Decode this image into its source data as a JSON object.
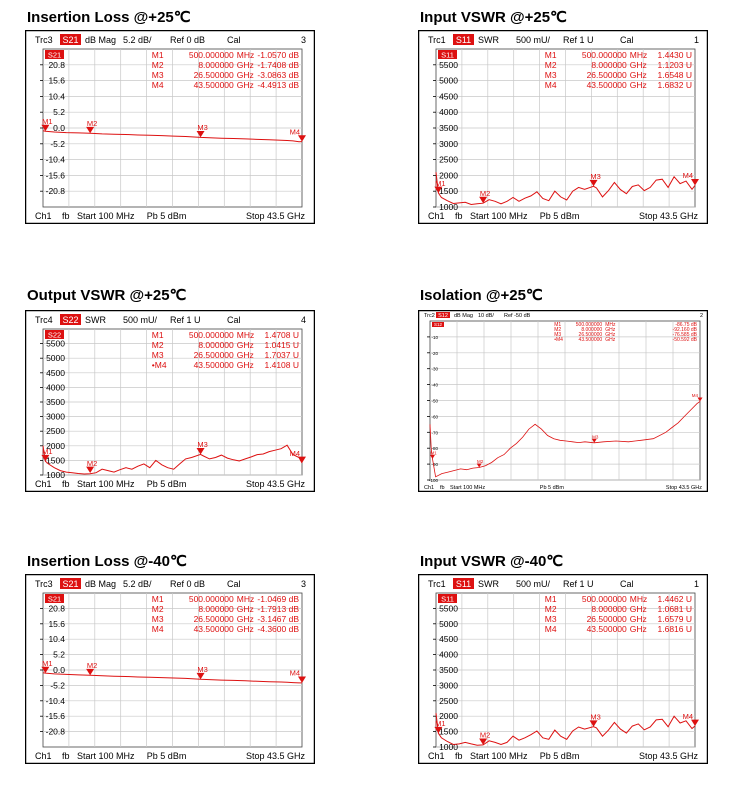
{
  "headings": [
    "Insertion Loss @+25℃",
    "Input VSWR @+25℃",
    "Output VSWR @+25℃",
    "Isolation @+25℃",
    "Insertion Loss @-40℃",
    "Input VSWR @-40℃"
  ],
  "colors": {
    "trace": "#dd1111",
    "frame": "#000000",
    "grid": "#c8c8c8",
    "background": "#ffffff"
  },
  "chart_data": [
    {
      "type": "line",
      "title": "Insertion Loss @+25℃",
      "header": {
        "trace": "Trc3",
        "param": "S21",
        "format": "dB Mag",
        "scale": "5.2 dB/",
        "ref": "Ref 0 dB",
        "cal": "Cal",
        "channel_number": "3"
      },
      "param_tag": "S21",
      "footer": {
        "channel": "Ch1",
        "mode": "fb",
        "start": "Start  100 MHz",
        "power": "Pb    5 dBm",
        "stop": "Stop  43.5 GHz"
      },
      "xlim": [
        0.1,
        43.5
      ],
      "ylim": [
        -26,
        26
      ],
      "ytick_values": [
        20.8,
        15.6,
        10.4,
        5.2,
        0.0,
        -5.2,
        -10.4,
        -15.6,
        -20.8
      ],
      "yticks": [
        "20.8",
        "15.6",
        "10.4",
        "5.2",
        "0.0",
        "-5.2",
        "-10.4",
        "-15.6",
        "-20.8"
      ],
      "markers": [
        {
          "id": "M1",
          "label": "M1",
          "freq": "500.000000",
          "unit": "MHz",
          "value": "-1.0570 dB",
          "x": 0.5,
          "y": -1.057
        },
        {
          "id": "M2",
          "label": "M2",
          "freq": "8.000000",
          "unit": "GHz",
          "value": "-1.7408 dB",
          "x": 8.0,
          "y": -1.741
        },
        {
          "id": "M3",
          "label": "M3",
          "freq": "26.500000",
          "unit": "GHz",
          "value": "-3.0863 dB",
          "x": 26.5,
          "y": -3.086
        },
        {
          "id": "M4",
          "label": "M4",
          "freq": "43.500000",
          "unit": "GHz",
          "value": "-4.4913 dB",
          "x": 43.5,
          "y": -4.491
        }
      ],
      "series": [
        {
          "x": [
            0.1,
            0.5,
            2,
            4,
            6,
            8,
            10,
            12,
            14,
            16,
            18,
            20,
            22,
            24,
            26.5,
            28,
            30,
            32,
            34,
            36,
            38,
            40,
            41,
            42,
            43,
            43.5
          ],
          "y": [
            -0.9,
            -1.06,
            -1.3,
            -1.5,
            -1.6,
            -1.74,
            -1.95,
            -2.05,
            -2.15,
            -2.3,
            -2.4,
            -2.5,
            -2.65,
            -2.8,
            -3.09,
            -3.2,
            -3.35,
            -3.45,
            -3.6,
            -3.75,
            -3.9,
            -4.0,
            -4.1,
            -4.25,
            -4.5,
            -4.49
          ]
        }
      ]
    },
    {
      "type": "line",
      "title": "Input VSWR @+25℃",
      "header": {
        "trace": "Trc1",
        "param": "S11",
        "format": "SWR",
        "scale": "500 mU/",
        "ref": "Ref 1 U",
        "cal": "Cal",
        "channel_number": "1"
      },
      "param_tag": "S11",
      "footer": {
        "channel": "Ch1",
        "mode": "fb",
        "start": "Start  100 MHz",
        "power": "Pb    5 dBm",
        "stop": "Stop  43.5 GHz"
      },
      "xlim": [
        0.1,
        43.5
      ],
      "ylim": [
        1000,
        6000
      ],
      "ytick_values": [
        5500,
        5000,
        4500,
        4000,
        3500,
        3000,
        2500,
        2000,
        1500,
        1000
      ],
      "yticks": [
        "5500",
        "5000",
        "4500",
        "4000",
        "3500",
        "3000",
        "2500",
        "2000",
        "1500",
        "1000"
      ],
      "markers": [
        {
          "id": "M1",
          "label": "M1",
          "freq": "500.000000",
          "unit": "MHz",
          "value": "1.4430 U",
          "x": 0.5,
          "y": 1443
        },
        {
          "id": "M2",
          "label": "M2",
          "freq": "8.000000",
          "unit": "GHz",
          "value": "1.1203 U",
          "x": 8.0,
          "y": 1120
        },
        {
          "id": "M3",
          "label": "M3",
          "freq": "26.500000",
          "unit": "GHz",
          "value": "1.6548 U",
          "x": 26.5,
          "y": 1655
        },
        {
          "id": "M4",
          "label": "M4",
          "freq": "43.500000",
          "unit": "GHz",
          "value": "1.6832 U",
          "x": 43.5,
          "y": 1683
        }
      ],
      "series": [
        {
          "x": [
            0.1,
            0.5,
            1,
            2,
            3,
            4,
            5,
            6,
            7,
            8,
            9,
            10,
            11,
            12,
            13,
            14,
            15,
            16,
            17,
            18,
            19,
            20,
            21,
            22,
            23,
            24,
            25,
            26.5,
            27,
            28,
            29,
            30,
            31,
            32,
            33,
            34,
            35,
            36,
            37,
            38,
            39,
            40,
            41,
            42,
            43,
            43.5
          ],
          "y": [
            2100,
            1443,
            1300,
            1200,
            1110,
            1130,
            1150,
            1080,
            1100,
            1120,
            1230,
            1180,
            1100,
            1180,
            1300,
            1180,
            1280,
            1350,
            1480,
            1270,
            1200,
            1500,
            1320,
            1220,
            1500,
            1620,
            1560,
            1655,
            1600,
            1320,
            1520,
            1780,
            1550,
            1420,
            1650,
            1700,
            1520,
            1620,
            1850,
            1880,
            1620,
            1960,
            1740,
            1820,
            1560,
            1683
          ]
        }
      ]
    },
    {
      "type": "line",
      "title": "Output VSWR @+25℃",
      "header": {
        "trace": "Trc4",
        "param": "S22",
        "format": "SWR",
        "scale": "500 mU/",
        "ref": "Ref 1 U",
        "cal": "Cal",
        "channel_number": "4"
      },
      "param_tag": "S22",
      "footer": {
        "channel": "Ch1",
        "mode": "fb",
        "start": "Start  100 MHz",
        "power": "Pb    5 dBm",
        "stop": "Stop  43.5 GHz"
      },
      "xlim": [
        0.1,
        43.5
      ],
      "ylim": [
        1000,
        6000
      ],
      "ytick_values": [
        5500,
        5000,
        4500,
        4000,
        3500,
        3000,
        2500,
        2000,
        1500,
        1000
      ],
      "yticks": [
        "5500",
        "5000",
        "4500",
        "4000",
        "3500",
        "3000",
        "2500",
        "2000",
        "1500",
        "1000"
      ],
      "markers": [
        {
          "id": "M1",
          "label": "M1",
          "freq": "500.000000",
          "unit": "MHz",
          "value": "1.4708 U",
          "x": 0.5,
          "y": 1471
        },
        {
          "id": "M2",
          "label": "M2",
          "freq": "8.000000",
          "unit": "GHz",
          "value": "1.0415 U",
          "x": 8.0,
          "y": 1042
        },
        {
          "id": "M3",
          "label": "M3",
          "freq": "26.500000",
          "unit": "GHz",
          "value": "1.7037 U",
          "x": 26.5,
          "y": 1704
        },
        {
          "id": "M4",
          "label": "•M4",
          "freq": "43.500000",
          "unit": "GHz",
          "value": "1.4108 U",
          "x": 43.5,
          "y": 1411
        }
      ],
      "series": [
        {
          "x": [
            0.1,
            0.5,
            1,
            2,
            3,
            4,
            5,
            6,
            7,
            8,
            9,
            10,
            11,
            12,
            13,
            14,
            15,
            16,
            17,
            18,
            19,
            20,
            21,
            22,
            23,
            24,
            25,
            26.5,
            27,
            28,
            29,
            30,
            31,
            32,
            33,
            34,
            35,
            36,
            37,
            38,
            39,
            40,
            41,
            42,
            43,
            43.5
          ],
          "y": [
            2000,
            1471,
            1380,
            1250,
            1150,
            1100,
            1080,
            1050,
            1030,
            1042,
            1080,
            1200,
            1150,
            1100,
            1180,
            1250,
            1200,
            1300,
            1380,
            1250,
            1500,
            1350,
            1250,
            1200,
            1380,
            1550,
            1600,
            1704,
            1650,
            1550,
            1600,
            1680,
            1580,
            1520,
            1480,
            1550,
            1620,
            1700,
            1720,
            1800,
            1850,
            1900,
            2020,
            1700,
            1600,
            1411
          ]
        }
      ]
    },
    {
      "type": "line",
      "title": "Isolation @+25℃",
      "header": {
        "trace": "Trc2",
        "param": "S12",
        "format": "dB Mag",
        "scale": "10 dB/",
        "ref": "Ref -50 dB",
        "cal": "",
        "channel_number": "2"
      },
      "param_tag": "S12",
      "footer": {
        "channel": "Ch1",
        "mode": "fb",
        "start": "Start  100 MHz",
        "power": "Pb    5 dBm",
        "stop": "Stop  43.5 GHz"
      },
      "xlim": [
        0.1,
        43.5
      ],
      "ylim": [
        -100,
        0
      ],
      "ytick_values": [
        -10,
        -20,
        -30,
        -40,
        -50,
        -60,
        -70,
        -80,
        -90,
        -100
      ],
      "yticks": [
        "-10",
        "-20",
        "-30",
        "-40",
        "-50",
        "-60",
        "-70",
        "-80",
        "-90",
        "-100"
      ],
      "markers": [
        {
          "id": "M1",
          "label": "M1",
          "freq": "500.000000",
          "unit": "MHz",
          "value": "-86.75 dB",
          "x": 0.5,
          "y": -86.75
        },
        {
          "id": "M2",
          "label": "M2",
          "freq": "8.000000",
          "unit": "GHz",
          "value": "-92.160 dB",
          "x": 8.0,
          "y": -92.16
        },
        {
          "id": "M3",
          "label": "M3",
          "freq": "26.500000",
          "unit": "GHz",
          "value": "-76.585 dB",
          "x": 26.5,
          "y": -76.585
        },
        {
          "id": "M4",
          "label": "•M4",
          "freq": "43.500000",
          "unit": "GHz",
          "value": "-50.592 dB",
          "x": 43.5,
          "y": -50.592
        }
      ],
      "series": [
        {
          "x": [
            0.1,
            0.3,
            0.5,
            1,
            2,
            3,
            4,
            5,
            6,
            7,
            8,
            9,
            10,
            11,
            12,
            13,
            14,
            15,
            16,
            17,
            18,
            19,
            20,
            21,
            22,
            23,
            24,
            25,
            26.5,
            28,
            30,
            32,
            34,
            36,
            38,
            39,
            40,
            41,
            42,
            43,
            43.5
          ],
          "y": [
            -65,
            -80,
            -86.75,
            -98,
            -96,
            -95,
            -94,
            -93,
            -93.5,
            -92.5,
            -92.16,
            -91,
            -89,
            -86,
            -84,
            -80,
            -77,
            -73,
            -68,
            -65,
            -68,
            -72,
            -74,
            -75,
            -75.5,
            -76,
            -76.5,
            -76,
            -76.585,
            -76,
            -75.5,
            -76,
            -75,
            -74,
            -70,
            -67,
            -64,
            -60,
            -56,
            -52,
            -50.592
          ]
        }
      ]
    },
    {
      "type": "line",
      "title": "Insertion Loss @-40℃",
      "header": {
        "trace": "Trc3",
        "param": "S21",
        "format": "dB Mag",
        "scale": "5.2 dB/",
        "ref": "Ref 0 dB",
        "cal": "Cal",
        "channel_number": "3"
      },
      "param_tag": "S21",
      "footer": {
        "channel": "Ch1",
        "mode": "fb",
        "start": "Start  100 MHz",
        "power": "Pb    5 dBm",
        "stop": "Stop  43.5 GHz"
      },
      "xlim": [
        0.1,
        43.5
      ],
      "ylim": [
        -26,
        26
      ],
      "ytick_values": [
        20.8,
        15.6,
        10.4,
        5.2,
        0.0,
        -5.2,
        -10.4,
        -15.6,
        -20.8
      ],
      "yticks": [
        "20.8",
        "15.6",
        "10.4",
        "5.2",
        "0.0",
        "-5.2",
        "-10.4",
        "-15.6",
        "-20.8"
      ],
      "markers": [
        {
          "id": "M1",
          "label": "M1",
          "freq": "500.000000",
          "unit": "MHz",
          "value": "-1.0469 dB",
          "x": 0.5,
          "y": -1.047
        },
        {
          "id": "M2",
          "label": "M2",
          "freq": "8.000000",
          "unit": "GHz",
          "value": "-1.7913 dB",
          "x": 8.0,
          "y": -1.791
        },
        {
          "id": "M3",
          "label": "M3",
          "freq": "26.500000",
          "unit": "GHz",
          "value": "-3.1467 dB",
          "x": 26.5,
          "y": -3.147
        },
        {
          "id": "M4",
          "label": "M4",
          "freq": "43.500000",
          "unit": "GHz",
          "value": "-4.3600 dB",
          "x": 43.5,
          "y": -4.36
        }
      ],
      "series": [
        {
          "x": [
            0.1,
            0.5,
            2,
            4,
            6,
            8,
            10,
            12,
            14,
            16,
            18,
            20,
            22,
            24,
            26.5,
            28,
            30,
            32,
            34,
            36,
            38,
            40,
            41,
            42,
            43,
            43.5
          ],
          "y": [
            -0.9,
            -1.05,
            -1.3,
            -1.5,
            -1.65,
            -1.79,
            -1.95,
            -2.1,
            -2.2,
            -2.35,
            -2.45,
            -2.55,
            -2.7,
            -2.85,
            -3.15,
            -3.25,
            -3.4,
            -3.5,
            -3.65,
            -3.8,
            -3.95,
            -4.05,
            -4.15,
            -4.25,
            -4.35,
            -4.36
          ]
        }
      ]
    },
    {
      "type": "line",
      "title": "Input VSWR @-40℃",
      "header": {
        "trace": "Trc1",
        "param": "S11",
        "format": "SWR",
        "scale": "500 mU/",
        "ref": "Ref 1 U",
        "cal": "Cal",
        "channel_number": "1"
      },
      "param_tag": "S11",
      "footer": {
        "channel": "Ch1",
        "mode": "fb",
        "start": "Start  100 MHz",
        "power": "Pb    5 dBm",
        "stop": "Stop  43.5 GHz"
      },
      "xlim": [
        0.1,
        43.5
      ],
      "ylim": [
        1000,
        6000
      ],
      "ytick_values": [
        5500,
        5000,
        4500,
        4000,
        3500,
        3000,
        2500,
        2000,
        1500,
        1000
      ],
      "yticks": [
        "5500",
        "5000",
        "4500",
        "4000",
        "3500",
        "3000",
        "2500",
        "2000",
        "1500",
        "1000"
      ],
      "markers": [
        {
          "id": "M1",
          "label": "M1",
          "freq": "500.000000",
          "unit": "MHz",
          "value": "1.4462 U",
          "x": 0.5,
          "y": 1446
        },
        {
          "id": "M2",
          "label": "M2",
          "freq": "8.000000",
          "unit": "GHz",
          "value": "1.0681 U",
          "x": 8.0,
          "y": 1068
        },
        {
          "id": "M3",
          "label": "M3",
          "freq": "26.500000",
          "unit": "GHz",
          "value": "1.6579 U",
          "x": 26.5,
          "y": 1658
        },
        {
          "id": "M4",
          "label": "M4",
          "freq": "43.500000",
          "unit": "GHz",
          "value": "1.6816 U",
          "x": 43.5,
          "y": 1682
        }
      ],
      "series": [
        {
          "x": [
            0.1,
            0.5,
            1,
            2,
            3,
            4,
            5,
            6,
            7,
            8,
            9,
            10,
            11,
            12,
            13,
            14,
            15,
            16,
            17,
            18,
            19,
            20,
            21,
            22,
            23,
            24,
            25,
            26.5,
            27,
            28,
            29,
            30,
            31,
            32,
            33,
            34,
            35,
            36,
            37,
            38,
            39,
            40,
            41,
            42,
            43,
            43.5
          ],
          "y": [
            2100,
            1446,
            1300,
            1180,
            1080,
            1100,
            1150,
            1100,
            1060,
            1068,
            1200,
            1150,
            1080,
            1150,
            1350,
            1220,
            1300,
            1400,
            1520,
            1300,
            1250,
            1550,
            1350,
            1250,
            1520,
            1650,
            1580,
            1658,
            1620,
            1350,
            1550,
            1800,
            1580,
            1450,
            1680,
            1750,
            1560,
            1650,
            1880,
            1900,
            1660,
            2000,
            1780,
            1850,
            1600,
            1682
          ]
        }
      ]
    }
  ]
}
